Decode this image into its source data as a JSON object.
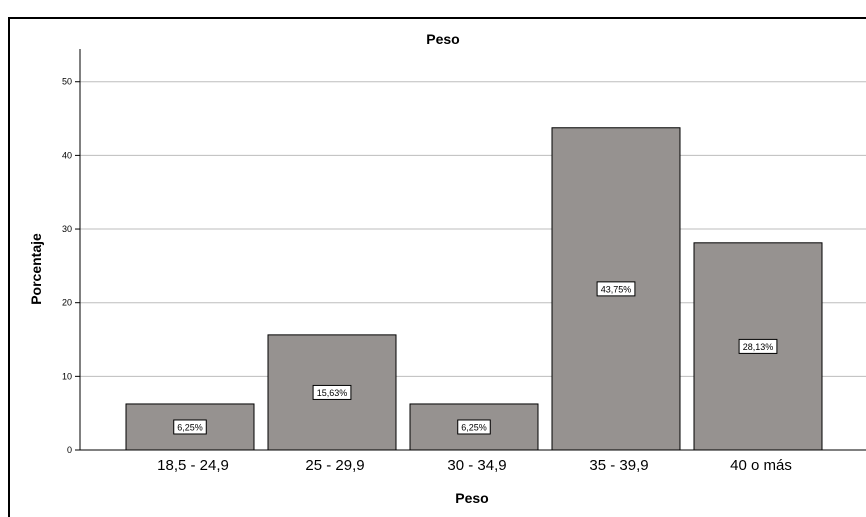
{
  "chart_data": {
    "type": "bar",
    "title": "Peso",
    "xlabel": "Peso",
    "ylabel": "Porcentaje",
    "categories": [
      "18,5 - 24,9",
      "25 - 29,9",
      "30 - 34,9",
      "35 - 39,9",
      "40 o más"
    ],
    "values": [
      6.25,
      15.63,
      6.25,
      43.75,
      28.13
    ],
    "data_labels": [
      "6,25%",
      "15,63%",
      "6,25%",
      "43,75%",
      "28,13%"
    ],
    "yticks": [
      0,
      10,
      20,
      30,
      40,
      50
    ],
    "ylim": [
      0,
      52
    ],
    "grid": true,
    "bar_color": "#969290",
    "grid_color": "#bdbdbd"
  }
}
